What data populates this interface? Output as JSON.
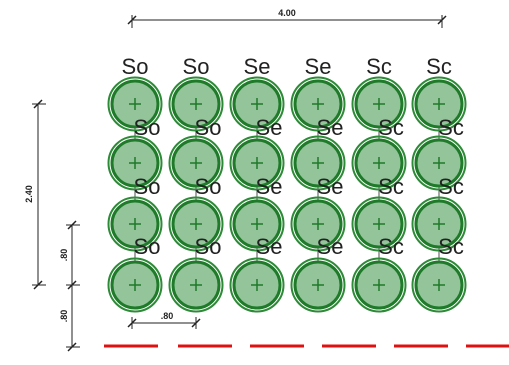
{
  "dimensions": {
    "top_width": "4.00",
    "left_height": "2.40",
    "left_spacing": ".80",
    "left_edge": ".80",
    "bottom_spacing": ".80"
  },
  "grid": {
    "rows": 4,
    "cols": 6,
    "column_codes": [
      "So",
      "So",
      "Se",
      "Se",
      "Sc",
      "Sc"
    ]
  },
  "colors": {
    "circle_fill": "#93c49a",
    "circle_stroke": "#1f7a2a",
    "cross": "#1f7a2a",
    "guide_line": "#8a8a8a",
    "dimension_line": "#222222",
    "boundary_dash": "#e01010",
    "label": "#222222"
  }
}
